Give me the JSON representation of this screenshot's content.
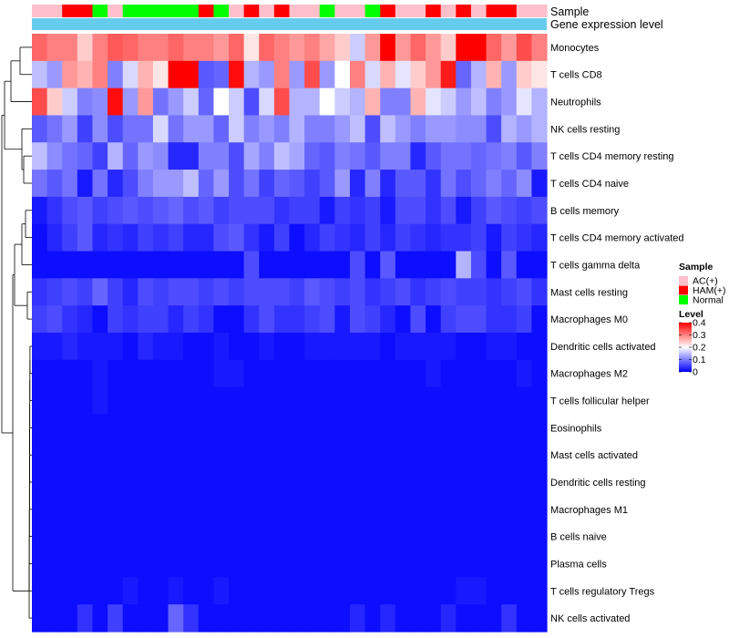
{
  "chart_data": {
    "type": "heatmap",
    "annotation_labels": [
      "Sample",
      "Gene expression level"
    ],
    "rows": [
      "Monocytes",
      "T cells CD8",
      "Neutrophils",
      "NK cells resting",
      "T cells CD4 memory resting",
      "T cells CD4 naive",
      "B cells memory",
      "T cells CD4 memory activated",
      "T cells gamma delta",
      "Mast cells resting",
      "Macrophages M0",
      "Dendritic cells activated",
      "Macrophages M2",
      "T cells follicular helper",
      "Eosinophils",
      "Mast cells activated",
      "Dendritic cells resting",
      "Macrophages M1",
      "B cells naive",
      "Plasma cells",
      "T cells regulatory  Tregs",
      "NK cells activated"
    ],
    "sample_groups": [
      "AC(+)",
      "AC(+)",
      "HAM(+)",
      "HAM(+)",
      "Normal",
      "AC(+)",
      "Normal",
      "Normal",
      "Normal",
      "Normal",
      "Normal",
      "HAM(+)",
      "Normal",
      "AC(+)",
      "HAM(+)",
      "AC(+)",
      "HAM(+)",
      "AC(+)",
      "AC(+)",
      "Normal",
      "AC(+)",
      "AC(+)",
      "Normal",
      "HAM(+)",
      "AC(+)",
      "AC(+)",
      "HAM(+)",
      "AC(+)",
      "HAM(+)",
      "AC(+)",
      "HAM(+)",
      "HAM(+)",
      "AC(+)",
      "AC(+)"
    ],
    "sample_colors": {
      "AC(+)": "#FFC0CB",
      "HAM(+)": "#FF0000",
      "Normal": "#00FF00"
    },
    "gene_expression_color": "#66CCEE",
    "matrix": [
      [
        0.32,
        0.3,
        0.3,
        0.24,
        0.3,
        0.33,
        0.32,
        0.3,
        0.3,
        0.32,
        0.3,
        0.3,
        0.28,
        0.32,
        0.22,
        0.32,
        0.3,
        0.28,
        0.3,
        0.27,
        0.24,
        0.16,
        0.28,
        0.4,
        0.28,
        0.32,
        0.28,
        0.24,
        0.4,
        0.4,
        0.32,
        0.28,
        0.34,
        0.3
      ],
      [
        0.15,
        0.12,
        0.28,
        0.26,
        0.3,
        0.1,
        0.17,
        0.26,
        0.22,
        0.4,
        0.4,
        0.07,
        0.08,
        0.39,
        0.14,
        0.12,
        0.3,
        0.12,
        0.34,
        0.12,
        0.2,
        0.3,
        0.17,
        0.26,
        0.18,
        0.24,
        0.28,
        0.38,
        0.08,
        0.14,
        0.26,
        0.12,
        0.24,
        0.22
      ],
      [
        0.34,
        0.24,
        0.16,
        0.1,
        0.11,
        0.39,
        0.12,
        0.28,
        0.09,
        0.12,
        0.16,
        0.08,
        0.2,
        0.16,
        0.06,
        0.17,
        0.34,
        0.14,
        0.14,
        0.2,
        0.16,
        0.14,
        0.26,
        0.1,
        0.1,
        0.26,
        0.18,
        0.16,
        0.12,
        0.15,
        0.1,
        0.12,
        0.18,
        0.14
      ],
      [
        0.07,
        0.09,
        0.12,
        0.05,
        0.11,
        0.06,
        0.09,
        0.09,
        0.17,
        0.09,
        0.12,
        0.12,
        0.08,
        0.16,
        0.1,
        0.12,
        0.1,
        0.14,
        0.1,
        0.1,
        0.12,
        0.15,
        0.06,
        0.15,
        0.12,
        0.1,
        0.12,
        0.12,
        0.11,
        0.11,
        0.06,
        0.14,
        0.12,
        0.14
      ],
      [
        0.15,
        0.11,
        0.09,
        0.08,
        0.05,
        0.14,
        0.08,
        0.12,
        0.11,
        0.03,
        0.03,
        0.1,
        0.1,
        0.06,
        0.13,
        0.1,
        0.15,
        0.13,
        0.08,
        0.07,
        0.1,
        0.09,
        0.07,
        0.1,
        0.1,
        0.03,
        0.07,
        0.09,
        0.09,
        0.08,
        0.09,
        0.1,
        0.07,
        0.1
      ],
      [
        0.09,
        0.07,
        0.09,
        0.02,
        0.09,
        0.03,
        0.06,
        0.1,
        0.12,
        0.12,
        0.15,
        0.08,
        0.12,
        0.06,
        0.09,
        0.05,
        0.08,
        0.07,
        0.05,
        0.07,
        0.12,
        0.03,
        0.1,
        0.03,
        0.07,
        0.07,
        0.04,
        0.09,
        0.06,
        0.08,
        0.1,
        0.08,
        0.11,
        0.02
      ],
      [
        0.02,
        0.04,
        0.06,
        0.07,
        0.05,
        0.06,
        0.07,
        0.06,
        0.07,
        0.08,
        0.06,
        0.07,
        0.05,
        0.06,
        0.06,
        0.06,
        0.04,
        0.05,
        0.05,
        0.02,
        0.05,
        0.04,
        0.05,
        0.02,
        0.06,
        0.06,
        0.04,
        0.06,
        0.02,
        0.05,
        0.07,
        0.06,
        0.05,
        0.06
      ],
      [
        0.01,
        0.03,
        0.05,
        0.07,
        0.03,
        0.04,
        0.03,
        0.05,
        0.04,
        0.05,
        0.03,
        0.03,
        0.06,
        0.07,
        0.04,
        0.02,
        0.05,
        0.01,
        0.03,
        0.05,
        0.04,
        0.03,
        0.05,
        0.03,
        0.05,
        0.04,
        0.03,
        0.04,
        0.04,
        0.05,
        0.02,
        0.05,
        0.04,
        0.03
      ],
      [
        0.01,
        0.01,
        0.01,
        0.01,
        0.01,
        0.01,
        0.01,
        0.01,
        0.01,
        0.01,
        0.01,
        0.01,
        0.01,
        0.01,
        0.06,
        0.01,
        0.01,
        0.01,
        0.01,
        0.01,
        0.01,
        0.06,
        0.01,
        0.07,
        0.01,
        0.01,
        0.01,
        0.01,
        0.14,
        0.06,
        0.01,
        0.07,
        0.01,
        0.01
      ],
      [
        0.04,
        0.05,
        0.06,
        0.05,
        0.08,
        0.05,
        0.03,
        0.06,
        0.05,
        0.06,
        0.06,
        0.05,
        0.06,
        0.05,
        0.06,
        0.06,
        0.06,
        0.05,
        0.07,
        0.06,
        0.05,
        0.06,
        0.04,
        0.05,
        0.06,
        0.04,
        0.05,
        0.06,
        0.05,
        0.05,
        0.04,
        0.05,
        0.06,
        0.04
      ],
      [
        0.05,
        0.06,
        0.04,
        0.03,
        0.01,
        0.05,
        0.04,
        0.05,
        0.05,
        0.03,
        0.05,
        0.04,
        0.01,
        0.01,
        0.04,
        0.06,
        0.04,
        0.04,
        0.05,
        0.06,
        0.02,
        0.06,
        0.05,
        0.03,
        0.01,
        0.06,
        0.01,
        0.05,
        0.06,
        0.06,
        0.04,
        0.04,
        0.05,
        0.01
      ],
      [
        0.02,
        0.02,
        0.03,
        0.02,
        0.02,
        0.02,
        0.01,
        0.03,
        0.02,
        0.02,
        0.01,
        0.01,
        0.02,
        0.01,
        0.01,
        0.02,
        0.01,
        0.01,
        0.02,
        0.02,
        0.02,
        0.02,
        0.02,
        0.01,
        0.02,
        0.02,
        0.02,
        0.02,
        0.01,
        0.01,
        0.02,
        0.02,
        0.01,
        0.01
      ],
      [
        0.01,
        0.01,
        0.01,
        0.01,
        0.02,
        0.01,
        0.01,
        0.01,
        0.01,
        0.01,
        0.01,
        0.01,
        0.02,
        0.02,
        0.01,
        0.01,
        0.01,
        0.01,
        0.01,
        0.01,
        0.01,
        0.01,
        0.01,
        0.01,
        0.01,
        0.01,
        0.02,
        0.01,
        0.01,
        0.01,
        0.01,
        0.01,
        0.02,
        0.01
      ],
      [
        0.01,
        0.01,
        0.01,
        0.01,
        0.02,
        0.01,
        0.01,
        0.01,
        0.01,
        0.01,
        0.01,
        0.01,
        0.01,
        0.01,
        0.01,
        0.01,
        0.01,
        0.01,
        0.01,
        0.01,
        0.01,
        0.01,
        0.01,
        0.01,
        0.01,
        0.01,
        0.01,
        0.01,
        0.01,
        0.01,
        0.01,
        0.01,
        0.01,
        0.01
      ],
      [
        0.01,
        0.01,
        0.01,
        0.01,
        0.01,
        0.01,
        0.01,
        0.01,
        0.01,
        0.01,
        0.01,
        0.01,
        0.01,
        0.01,
        0.01,
        0.01,
        0.01,
        0.01,
        0.01,
        0.01,
        0.01,
        0.01,
        0.01,
        0.01,
        0.01,
        0.01,
        0.01,
        0.01,
        0.01,
        0.01,
        0.01,
        0.01,
        0.01,
        0.01
      ],
      [
        0.01,
        0.01,
        0.01,
        0.01,
        0.01,
        0.01,
        0.01,
        0.01,
        0.01,
        0.01,
        0.01,
        0.01,
        0.01,
        0.01,
        0.01,
        0.01,
        0.01,
        0.01,
        0.01,
        0.01,
        0.01,
        0.01,
        0.01,
        0.01,
        0.01,
        0.01,
        0.01,
        0.01,
        0.01,
        0.01,
        0.01,
        0.01,
        0.01,
        0.01
      ],
      [
        0.01,
        0.01,
        0.01,
        0.01,
        0.01,
        0.01,
        0.01,
        0.01,
        0.01,
        0.01,
        0.01,
        0.01,
        0.01,
        0.01,
        0.01,
        0.01,
        0.01,
        0.01,
        0.01,
        0.01,
        0.01,
        0.01,
        0.01,
        0.01,
        0.01,
        0.01,
        0.01,
        0.01,
        0.01,
        0.01,
        0.01,
        0.01,
        0.01,
        0.01
      ],
      [
        0.01,
        0.01,
        0.01,
        0.01,
        0.01,
        0.01,
        0.01,
        0.01,
        0.01,
        0.01,
        0.01,
        0.01,
        0.01,
        0.01,
        0.01,
        0.01,
        0.01,
        0.01,
        0.01,
        0.01,
        0.01,
        0.01,
        0.01,
        0.01,
        0.01,
        0.01,
        0.01,
        0.01,
        0.01,
        0.01,
        0.01,
        0.01,
        0.01,
        0.01
      ],
      [
        0.01,
        0.01,
        0.01,
        0.01,
        0.01,
        0.01,
        0.01,
        0.01,
        0.01,
        0.01,
        0.01,
        0.01,
        0.01,
        0.01,
        0.01,
        0.01,
        0.01,
        0.01,
        0.01,
        0.01,
        0.01,
        0.01,
        0.01,
        0.01,
        0.01,
        0.01,
        0.01,
        0.01,
        0.01,
        0.01,
        0.01,
        0.01,
        0.01,
        0.01
      ],
      [
        0.01,
        0.01,
        0.01,
        0.01,
        0.01,
        0.01,
        0.01,
        0.01,
        0.01,
        0.01,
        0.01,
        0.01,
        0.01,
        0.01,
        0.01,
        0.01,
        0.01,
        0.01,
        0.01,
        0.01,
        0.01,
        0.01,
        0.01,
        0.01,
        0.01,
        0.01,
        0.01,
        0.01,
        0.01,
        0.01,
        0.01,
        0.01,
        0.01,
        0.01
      ],
      [
        0.01,
        0.01,
        0.01,
        0.01,
        0.01,
        0.01,
        0.02,
        0.01,
        0.01,
        0.02,
        0.01,
        0.01,
        0.02,
        0.01,
        0.01,
        0.01,
        0.01,
        0.01,
        0.01,
        0.01,
        0.01,
        0.01,
        0.01,
        0.01,
        0.01,
        0.01,
        0.01,
        0.01,
        0.02,
        0.02,
        0.01,
        0.01,
        0.01,
        0.01
      ],
      [
        0.01,
        0.01,
        0.01,
        0.04,
        0.01,
        0.05,
        0.01,
        0.01,
        0.01,
        0.08,
        0.04,
        0.01,
        0.01,
        0.01,
        0.01,
        0.01,
        0.01,
        0.01,
        0.01,
        0.01,
        0.01,
        0.03,
        0.01,
        0.03,
        0.01,
        0.01,
        0.01,
        0.03,
        0.01,
        0.01,
        0.01,
        0.04,
        0.01,
        0.01
      ]
    ],
    "value_range": [
      0,
      0.4
    ],
    "color_stops": {
      "low": "#0000FF",
      "mid": "#FFFFFF",
      "high": "#FF0000",
      "mid_value": 0.2
    },
    "legends": {
      "sample": {
        "title": "Sample",
        "items": [
          "AC(+)",
          "HAM(+)",
          "Normal"
        ]
      },
      "level": {
        "title": "Level",
        "ticks": [
          "0.4",
          "0.3",
          "0.2",
          "0.1",
          "0"
        ],
        "tick_values": [
          0.4,
          0.3,
          0.2,
          0.1,
          0
        ]
      }
    },
    "row_dendrogram": true
  }
}
